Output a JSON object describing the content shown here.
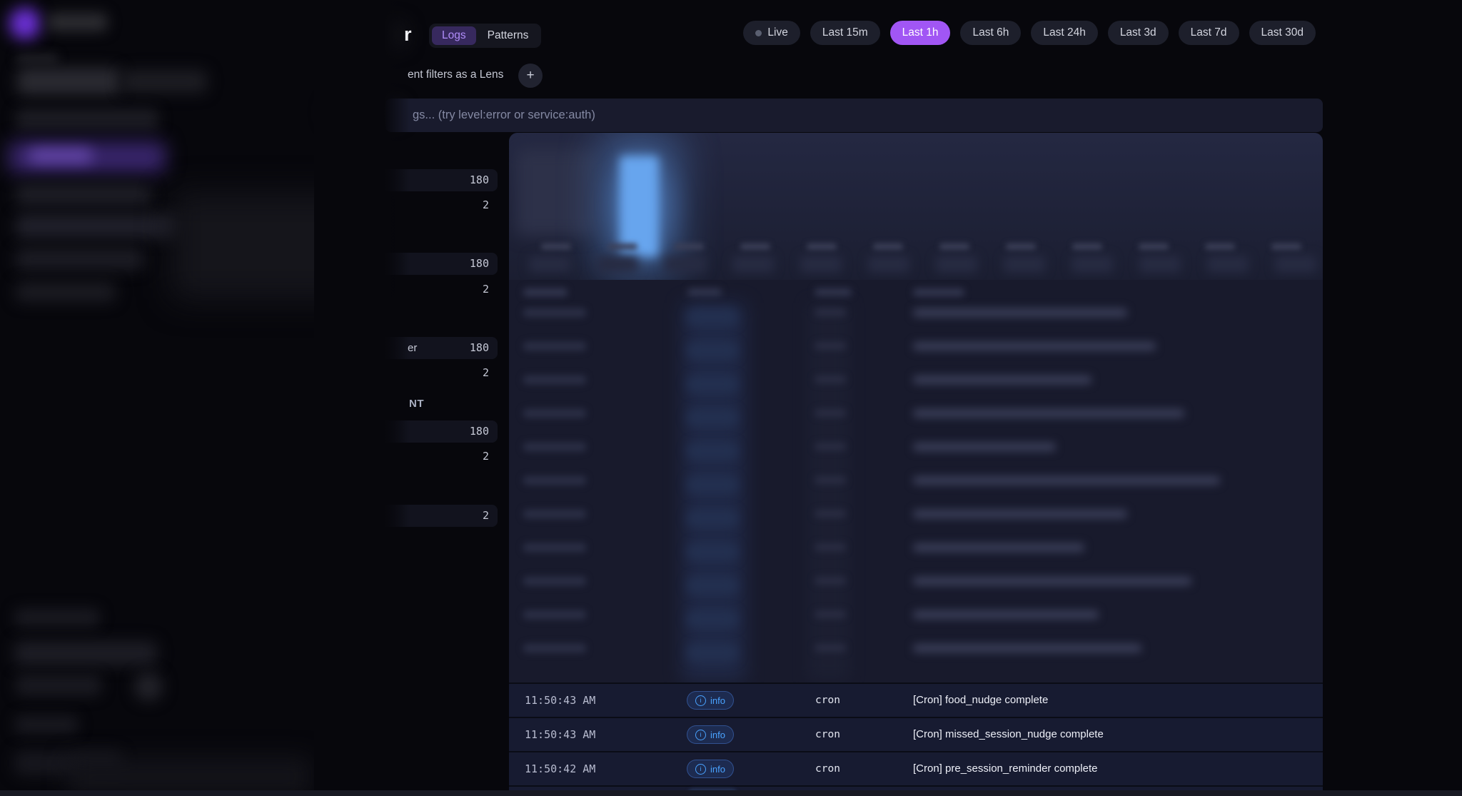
{
  "app": {
    "title_fragment": "r"
  },
  "tabs": {
    "items": [
      {
        "label": "Logs"
      },
      {
        "label": "Patterns"
      }
    ],
    "active": "Logs"
  },
  "time_ranges": {
    "items": [
      {
        "label": "Live"
      },
      {
        "label": "Last 15m"
      },
      {
        "label": "Last 1h"
      },
      {
        "label": "Last 6h"
      },
      {
        "label": "Last 24h"
      },
      {
        "label": "Last 3d"
      },
      {
        "label": "Last 7d"
      },
      {
        "label": "Last 30d"
      }
    ],
    "active": "Last 1h"
  },
  "lens": {
    "text_fragment": "ent filters as a Lens",
    "add_label": "+"
  },
  "search": {
    "placeholder_fragment": "gs... (try level:error or service:auth)"
  },
  "facets": {
    "section_header_fragment": "NT",
    "rows": [
      {
        "count": "180",
        "highlight": true
      },
      {
        "count": "2",
        "highlight": false
      },
      {
        "count": "180",
        "highlight": true
      },
      {
        "count": "2",
        "highlight": false
      },
      {
        "count": "180",
        "highlight": true,
        "label_fragment": "er"
      },
      {
        "count": "2",
        "highlight": false
      },
      {
        "count": "180",
        "highlight": true
      },
      {
        "count": "2",
        "highlight": false
      },
      {
        "count": "2",
        "highlight": true
      }
    ]
  },
  "logs": {
    "rows": [
      {
        "time": "11:50:43 AM",
        "level": "info",
        "service": "cron",
        "message": "[Cron] food_nudge complete"
      },
      {
        "time": "11:50:43 AM",
        "level": "info",
        "service": "cron",
        "message": "[Cron] missed_session_nudge complete"
      },
      {
        "time": "11:50:42 AM",
        "level": "info",
        "service": "cron",
        "message": "[Cron] pre_session_reminder complete"
      }
    ],
    "partial_row_level": "info"
  },
  "icons": {
    "info_glyph": "i"
  },
  "colors": {
    "accent_purple": "#a156f4",
    "tab_active_bg": "#37295e",
    "tab_active_text": "#b08cf9",
    "info_badge_text": "#4aa3ff",
    "chart_bar_blue": "#67a5ee",
    "row_bg": "#171b31",
    "search_bg": "#191b2d"
  }
}
